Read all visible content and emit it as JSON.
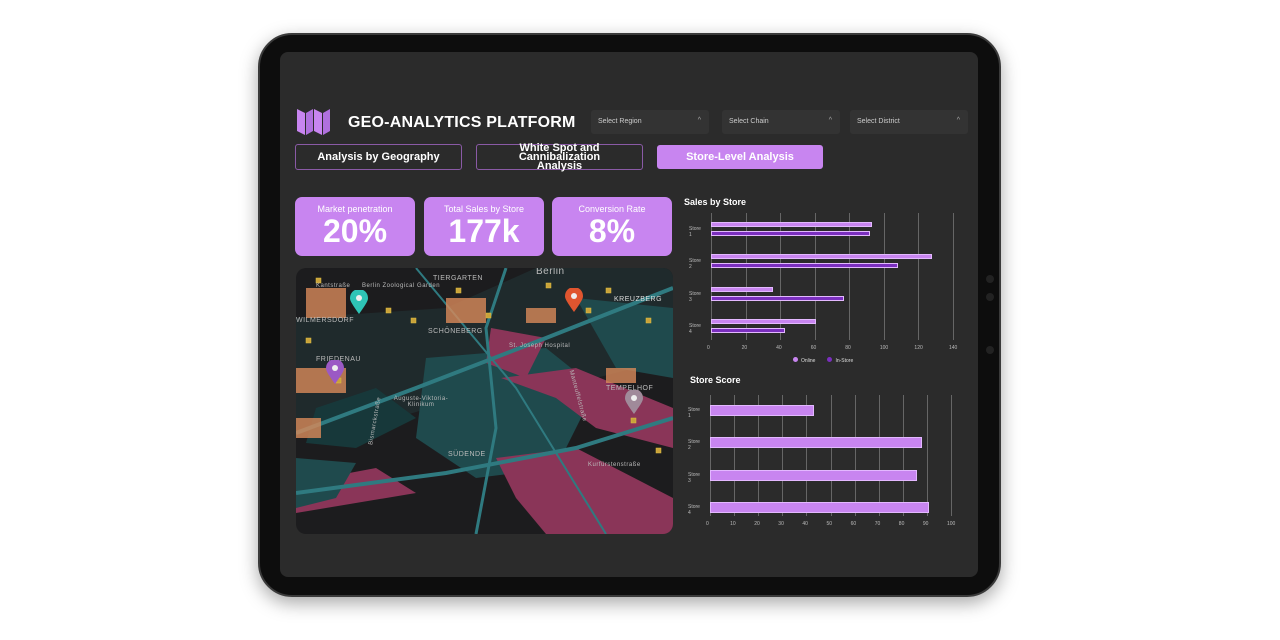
{
  "header": {
    "title": "GEO-ANALYTICS PLATFORM",
    "logo_icon": "map-fold-icon"
  },
  "filters": [
    {
      "label": "Select Region"
    },
    {
      "label": "Select Chain"
    },
    {
      "label": "Select District"
    }
  ],
  "tabs": [
    {
      "label": "Analysis by Geography"
    },
    {
      "label": "White Spot and Cannibalization Analysis"
    },
    {
      "label": "Store-Level Analysis",
      "active": true
    }
  ],
  "kpis": [
    {
      "label": "Market penetration",
      "value": "20%"
    },
    {
      "label": "Total Sales by Store",
      "value": "177k"
    },
    {
      "label": "Conversion Rate",
      "value": "8%"
    }
  ],
  "map": {
    "labels": [
      "Berlin",
      "TIERGARTEN",
      "KREUZBERG",
      "Kantstraße",
      "Berlin Zoological Garden",
      "WILMERSDORF",
      "SCHÖNEBERG",
      "St. Joseph Hospital",
      "FRIEDENAU",
      "Auguste-Viktoria-Klinikum",
      "Bismarckstraße",
      "Manteuffelstraße",
      "TEMPELHOF",
      "SÜDENDE",
      "Kurfürstenstraße"
    ],
    "pins": [
      {
        "color": "#2ec4b6"
      },
      {
        "color": "#e0552f"
      },
      {
        "color": "#9b59c4"
      },
      {
        "color": "#a08a9a"
      }
    ]
  },
  "colors": {
    "accent": "#c885f0",
    "instore": "#7b2fbf"
  },
  "chart_data": [
    {
      "type": "bar",
      "orientation": "horizontal",
      "title": "Sales by Store",
      "categories": [
        "Store 1",
        "Store 2",
        "Store 3",
        "Store 4"
      ],
      "series": [
        {
          "name": "Online",
          "color": "#c885f0",
          "values": [
            93,
            128,
            36,
            61
          ]
        },
        {
          "name": "In-Store",
          "color": "#7b2fbf",
          "values": [
            92,
            108,
            77,
            43
          ]
        }
      ],
      "xlim": [
        0,
        140
      ],
      "xticks": [
        "0",
        "20",
        "40",
        "60",
        "80",
        "100",
        "120",
        "140"
      ],
      "grid": true,
      "legend": "bottom"
    },
    {
      "type": "bar",
      "orientation": "horizontal",
      "title": "Store Score",
      "categories": [
        "Store 1",
        "Store 2",
        "Store 3",
        "Store 4"
      ],
      "series": [
        {
          "color": "#c885f0",
          "values": [
            43,
            88,
            86,
            91
          ]
        }
      ],
      "xlim": [
        0,
        100
      ],
      "xticks": [
        "0",
        "10",
        "20",
        "30",
        "40",
        "50",
        "60",
        "70",
        "80",
        "90",
        "100"
      ],
      "grid": true
    }
  ]
}
